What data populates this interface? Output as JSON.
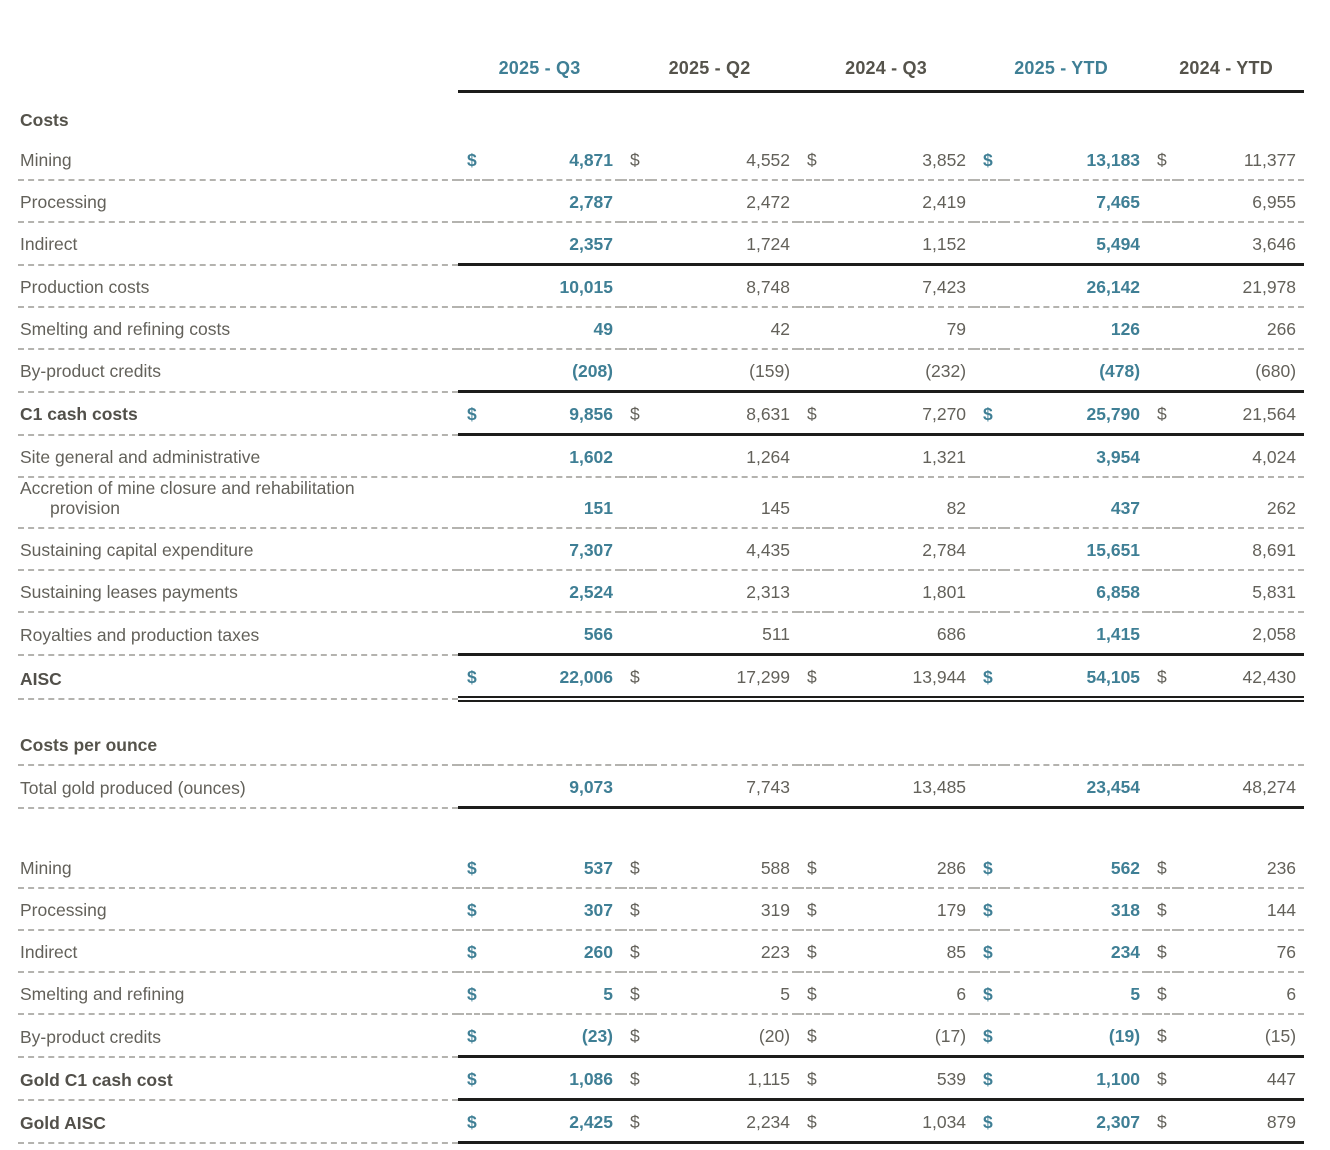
{
  "colors": {
    "accent_teal": "#3f7f95",
    "text_gray": "#63615a",
    "text_dark_bold": "#52504a",
    "line_solid": "#1d1d1b",
    "line_dashed": "#b4b3af",
    "background": "#ffffff"
  },
  "table": {
    "currency_symbol": "$",
    "columns": [
      {
        "label": "2025 - Q3",
        "accent": true
      },
      {
        "label": "2025 - Q2",
        "accent": false
      },
      {
        "label": "2024 - Q3",
        "accent": false
      },
      {
        "label": "2025 - YTD",
        "accent": true
      },
      {
        "label": "2024 - YTD",
        "accent": false
      }
    ],
    "rows": [
      {
        "type": "section",
        "label": "Costs",
        "sep": "none"
      },
      {
        "type": "data",
        "label": "Mining",
        "dollar": true,
        "values": [
          "4,871",
          "4,552",
          "3,852",
          "13,183",
          "11,377"
        ],
        "sep": "dashed"
      },
      {
        "type": "data",
        "label": "Processing",
        "values": [
          "2,787",
          "2,472",
          "2,419",
          "7,465",
          "6,955"
        ],
        "sep": "dashed"
      },
      {
        "type": "data",
        "label": "Indirect",
        "values": [
          "2,357",
          "1,724",
          "1,152",
          "5,494",
          "3,646"
        ],
        "sep": "solid"
      },
      {
        "type": "data",
        "label": "Production costs",
        "values": [
          "10,015",
          "8,748",
          "7,423",
          "26,142",
          "21,978"
        ],
        "sep": "dashed"
      },
      {
        "type": "data",
        "label": "Smelting and refining costs",
        "values": [
          "49",
          "42",
          "79",
          "126",
          "266"
        ],
        "sep": "dashed"
      },
      {
        "type": "data",
        "label": "By-product credits",
        "values": [
          "(208)",
          "(159)",
          "(232)",
          "(478)",
          "(680)"
        ],
        "sep": "solid"
      },
      {
        "type": "data",
        "label": "C1 cash costs",
        "bold": true,
        "dollar": true,
        "values": [
          "9,856",
          "8,631",
          "7,270",
          "25,790",
          "21,564"
        ],
        "sep": "solid"
      },
      {
        "type": "data",
        "label": "Site general and administrative",
        "values": [
          "1,602",
          "1,264",
          "1,321",
          "3,954",
          "4,024"
        ],
        "sep": "dashed"
      },
      {
        "type": "data",
        "label": "Accretion of mine closure and rehabilitation",
        "label2": "provision",
        "values": [
          "151",
          "145",
          "82",
          "437",
          "262"
        ],
        "sep": "dashed"
      },
      {
        "type": "data",
        "label": "Sustaining capital expenditure",
        "values": [
          "7,307",
          "4,435",
          "2,784",
          "15,651",
          "8,691"
        ],
        "sep": "dashed"
      },
      {
        "type": "data",
        "label": "Sustaining leases payments",
        "values": [
          "2,524",
          "2,313",
          "1,801",
          "6,858",
          "5,831"
        ],
        "sep": "dashed"
      },
      {
        "type": "data",
        "label": "Royalties and production taxes",
        "values": [
          "566",
          "511",
          "686",
          "1,415",
          "2,058"
        ],
        "sep": "solid"
      },
      {
        "type": "data",
        "label": "AISC",
        "bold": true,
        "dollar": true,
        "values": [
          "22,006",
          "17,299",
          "13,944",
          "54,105",
          "42,430"
        ],
        "sep": "double"
      },
      {
        "type": "spacer",
        "h": 16
      },
      {
        "type": "section",
        "label": "Costs per ounce",
        "sep": "dashed"
      },
      {
        "type": "data",
        "label": "Total gold produced (ounces)",
        "values": [
          "9,073",
          "7,743",
          "13,485",
          "23,454",
          "48,274"
        ],
        "sep": "solid"
      },
      {
        "type": "spacer",
        "h": 38
      },
      {
        "type": "data",
        "label": "Mining",
        "dollar": true,
        "values": [
          "537",
          "588",
          "286",
          "562",
          "236"
        ],
        "sep": "dashed"
      },
      {
        "type": "data",
        "label": "Processing",
        "dollar": true,
        "values": [
          "307",
          "319",
          "179",
          "318",
          "144"
        ],
        "sep": "dashed"
      },
      {
        "type": "data",
        "label": "Indirect",
        "dollar": true,
        "values": [
          "260",
          "223",
          "85",
          "234",
          "76"
        ],
        "sep": "dashed"
      },
      {
        "type": "data",
        "label": "Smelting and refining",
        "dollar": true,
        "values": [
          "5",
          "5",
          "6",
          "5",
          "6"
        ],
        "sep": "dashed"
      },
      {
        "type": "data",
        "label": "By-product credits",
        "dollar": true,
        "values": [
          "(23)",
          "(20)",
          "(17)",
          "(19)",
          "(15)"
        ],
        "sep": "solid"
      },
      {
        "type": "data",
        "label": "Gold C1 cash cost",
        "bold": true,
        "dollar": true,
        "values": [
          "1,086",
          "1,115",
          "539",
          "1,100",
          "447"
        ],
        "sep": "solid"
      },
      {
        "type": "data",
        "label": "Gold AISC",
        "bold": true,
        "dollar": true,
        "values": [
          "2,425",
          "2,234",
          "1,034",
          "2,307",
          "879"
        ],
        "sep": "solid"
      }
    ]
  }
}
